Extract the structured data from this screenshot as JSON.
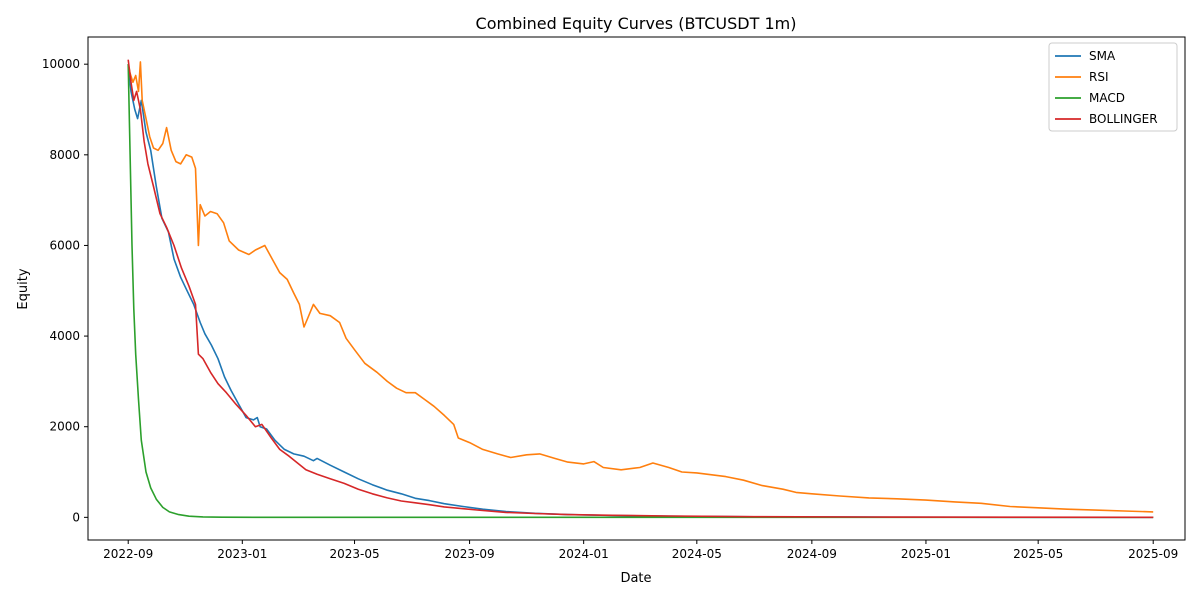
{
  "chart_data": {
    "type": "line",
    "title": "Combined Equity Curves (BTCUSDT 1m)",
    "xlabel": "Date",
    "ylabel": "Equity",
    "x_axis_type": "date",
    "xlim": [
      "2022-07-20",
      "2025-10-05"
    ],
    "ylim": [
      -500,
      10600
    ],
    "x_ticks": [
      {
        "date": "2022-09-01",
        "label": "2022-09"
      },
      {
        "date": "2023-01-01",
        "label": "2023-01"
      },
      {
        "date": "2023-05-01",
        "label": "2023-05"
      },
      {
        "date": "2023-09-01",
        "label": "2023-09"
      },
      {
        "date": "2024-01-01",
        "label": "2024-01"
      },
      {
        "date": "2024-05-01",
        "label": "2024-05"
      },
      {
        "date": "2024-09-01",
        "label": "2024-09"
      },
      {
        "date": "2025-01-01",
        "label": "2025-01"
      },
      {
        "date": "2025-05-01",
        "label": "2025-05"
      },
      {
        "date": "2025-09-01",
        "label": "2025-09"
      }
    ],
    "y_ticks": [
      {
        "value": 0,
        "label": "0"
      },
      {
        "value": 2000,
        "label": "2000"
      },
      {
        "value": 4000,
        "label": "4000"
      },
      {
        "value": 6000,
        "label": "6000"
      },
      {
        "value": 8000,
        "label": "8000"
      },
      {
        "value": 10000,
        "label": "10000"
      }
    ],
    "grid": false,
    "legend_position": "top-right",
    "series": [
      {
        "name": "SMA",
        "color": "#1f77b4",
        "points": [
          [
            "2022-09-01",
            10000
          ],
          [
            "2022-09-04",
            9400
          ],
          [
            "2022-09-08",
            9000
          ],
          [
            "2022-09-11",
            8800
          ],
          [
            "2022-09-15",
            9200
          ],
          [
            "2022-09-20",
            8500
          ],
          [
            "2022-09-25",
            8100
          ],
          [
            "2022-10-01",
            7300
          ],
          [
            "2022-10-07",
            6600
          ],
          [
            "2022-10-14",
            6300
          ],
          [
            "2022-10-20",
            5700
          ],
          [
            "2022-10-27",
            5300
          ],
          [
            "2022-11-03",
            5000
          ],
          [
            "2022-11-10",
            4700
          ],
          [
            "2022-11-17",
            4300
          ],
          [
            "2022-11-22",
            4050
          ],
          [
            "2022-11-29",
            3800
          ],
          [
            "2022-12-06",
            3500
          ],
          [
            "2022-12-13",
            3100
          ],
          [
            "2022-12-20",
            2800
          ],
          [
            "2022-12-28",
            2500
          ],
          [
            "2023-01-05",
            2200
          ],
          [
            "2023-01-13",
            2150
          ],
          [
            "2023-01-17",
            2200
          ],
          [
            "2023-01-20",
            2000
          ],
          [
            "2023-01-27",
            1950
          ],
          [
            "2023-02-05",
            1700
          ],
          [
            "2023-02-15",
            1500
          ],
          [
            "2023-02-25",
            1400
          ],
          [
            "2023-03-08",
            1350
          ],
          [
            "2023-03-18",
            1250
          ],
          [
            "2023-03-22",
            1300
          ],
          [
            "2023-04-05",
            1150
          ],
          [
            "2023-04-20",
            1000
          ],
          [
            "2023-05-05",
            850
          ],
          [
            "2023-05-20",
            720
          ],
          [
            "2023-06-05",
            600
          ],
          [
            "2023-06-20",
            520
          ],
          [
            "2023-07-05",
            420
          ],
          [
            "2023-07-20",
            370
          ],
          [
            "2023-08-05",
            300
          ],
          [
            "2023-08-25",
            240
          ],
          [
            "2023-09-15",
            180
          ],
          [
            "2023-10-10",
            130
          ],
          [
            "2023-11-10",
            90
          ],
          [
            "2023-12-15",
            60
          ],
          [
            "2024-02-01",
            40
          ],
          [
            "2024-04-01",
            25
          ],
          [
            "2024-07-01",
            12
          ],
          [
            "2024-11-01",
            5
          ],
          [
            "2025-04-01",
            2
          ],
          [
            "2025-09-01",
            1
          ]
        ]
      },
      {
        "name": "RSI",
        "color": "#ff7f0e",
        "points": [
          [
            "2022-09-01",
            10000
          ],
          [
            "2022-09-03",
            9800
          ],
          [
            "2022-09-06",
            9600
          ],
          [
            "2022-09-09",
            9750
          ],
          [
            "2022-09-12",
            9400
          ],
          [
            "2022-09-14",
            10050
          ],
          [
            "2022-09-16",
            9200
          ],
          [
            "2022-09-20",
            8800
          ],
          [
            "2022-09-24",
            8400
          ],
          [
            "2022-09-28",
            8150
          ],
          [
            "2022-10-03",
            8100
          ],
          [
            "2022-10-08",
            8250
          ],
          [
            "2022-10-12",
            8600
          ],
          [
            "2022-10-17",
            8100
          ],
          [
            "2022-10-22",
            7850
          ],
          [
            "2022-10-27",
            7800
          ],
          [
            "2022-11-02",
            8000
          ],
          [
            "2022-11-08",
            7950
          ],
          [
            "2022-11-12",
            7700
          ],
          [
            "2022-11-15",
            6000
          ],
          [
            "2022-11-17",
            6900
          ],
          [
            "2022-11-22",
            6650
          ],
          [
            "2022-11-28",
            6750
          ],
          [
            "2022-12-05",
            6700
          ],
          [
            "2022-12-12",
            6500
          ],
          [
            "2022-12-18",
            6100
          ],
          [
            "2022-12-28",
            5900
          ],
          [
            "2023-01-08",
            5800
          ],
          [
            "2023-01-15",
            5900
          ],
          [
            "2023-01-25",
            6000
          ],
          [
            "2023-02-02",
            5700
          ],
          [
            "2023-02-10",
            5400
          ],
          [
            "2023-02-18",
            5250
          ],
          [
            "2023-02-25",
            4950
          ],
          [
            "2023-03-03",
            4700
          ],
          [
            "2023-03-08",
            4200
          ],
          [
            "2023-03-12",
            4400
          ],
          [
            "2023-03-18",
            4700
          ],
          [
            "2023-03-25",
            4500
          ],
          [
            "2023-04-05",
            4450
          ],
          [
            "2023-04-15",
            4300
          ],
          [
            "2023-04-22",
            3950
          ],
          [
            "2023-05-01",
            3700
          ],
          [
            "2023-05-12",
            3400
          ],
          [
            "2023-05-25",
            3200
          ],
          [
            "2023-06-05",
            3000
          ],
          [
            "2023-06-15",
            2850
          ],
          [
            "2023-06-25",
            2750
          ],
          [
            "2023-07-05",
            2750
          ],
          [
            "2023-07-15",
            2600
          ],
          [
            "2023-07-25",
            2450
          ],
          [
            "2023-08-05",
            2250
          ],
          [
            "2023-08-15",
            2050
          ],
          [
            "2023-08-20",
            1750
          ],
          [
            "2023-09-01",
            1650
          ],
          [
            "2023-09-15",
            1500
          ],
          [
            "2023-10-01",
            1400
          ],
          [
            "2023-10-15",
            1320
          ],
          [
            "2023-11-01",
            1380
          ],
          [
            "2023-11-15",
            1400
          ],
          [
            "2023-12-01",
            1300
          ],
          [
            "2023-12-15",
            1220
          ],
          [
            "2024-01-01",
            1180
          ],
          [
            "2024-01-12",
            1230
          ],
          [
            "2024-01-22",
            1100
          ],
          [
            "2024-02-10",
            1050
          ],
          [
            "2024-03-01",
            1100
          ],
          [
            "2024-03-15",
            1200
          ],
          [
            "2024-04-01",
            1100
          ],
          [
            "2024-04-15",
            1000
          ],
          [
            "2024-05-01",
            980
          ],
          [
            "2024-06-01",
            900
          ],
          [
            "2024-06-20",
            820
          ],
          [
            "2024-07-10",
            700
          ],
          [
            "2024-08-01",
            620
          ],
          [
            "2024-08-15",
            550
          ],
          [
            "2024-09-01",
            520
          ],
          [
            "2024-10-01",
            470
          ],
          [
            "2024-11-01",
            430
          ],
          [
            "2024-12-01",
            410
          ],
          [
            "2025-01-01",
            380
          ],
          [
            "2025-02-01",
            340
          ],
          [
            "2025-03-01",
            310
          ],
          [
            "2025-04-01",
            240
          ],
          [
            "2025-05-01",
            210
          ],
          [
            "2025-06-01",
            180
          ],
          [
            "2025-07-01",
            160
          ],
          [
            "2025-08-01",
            140
          ],
          [
            "2025-09-01",
            120
          ]
        ]
      },
      {
        "name": "MACD",
        "color": "#2ca02c",
        "points": [
          [
            "2022-09-01",
            10000
          ],
          [
            "2022-09-03",
            8000
          ],
          [
            "2022-09-05",
            6000
          ],
          [
            "2022-09-07",
            4600
          ],
          [
            "2022-09-09",
            3600
          ],
          [
            "2022-09-12",
            2600
          ],
          [
            "2022-09-15",
            1700
          ],
          [
            "2022-09-20",
            1000
          ],
          [
            "2022-09-25",
            650
          ],
          [
            "2022-10-01",
            400
          ],
          [
            "2022-10-08",
            220
          ],
          [
            "2022-10-15",
            120
          ],
          [
            "2022-10-25",
            60
          ],
          [
            "2022-11-05",
            25
          ],
          [
            "2022-11-20",
            10
          ],
          [
            "2022-12-10",
            3
          ],
          [
            "2023-02-01",
            1
          ],
          [
            "2023-06-01",
            0
          ],
          [
            "2024-01-01",
            0
          ],
          [
            "2025-09-01",
            0
          ]
        ]
      },
      {
        "name": "BOLLINGER",
        "color": "#d62728",
        "points": [
          [
            "2022-09-01",
            10100
          ],
          [
            "2022-09-04",
            9600
          ],
          [
            "2022-09-07",
            9200
          ],
          [
            "2022-09-10",
            9400
          ],
          [
            "2022-09-14",
            9000
          ],
          [
            "2022-09-18",
            8300
          ],
          [
            "2022-09-22",
            7800
          ],
          [
            "2022-09-28",
            7300
          ],
          [
            "2022-10-05",
            6700
          ],
          [
            "2022-10-12",
            6400
          ],
          [
            "2022-10-20",
            6000
          ],
          [
            "2022-10-28",
            5500
          ],
          [
            "2022-11-05",
            5100
          ],
          [
            "2022-11-12",
            4700
          ],
          [
            "2022-11-15",
            3600
          ],
          [
            "2022-11-20",
            3500
          ],
          [
            "2022-11-28",
            3200
          ],
          [
            "2022-12-06",
            2950
          ],
          [
            "2022-12-15",
            2750
          ],
          [
            "2022-12-25",
            2500
          ],
          [
            "2023-01-05",
            2250
          ],
          [
            "2023-01-15",
            2000
          ],
          [
            "2023-01-22",
            2050
          ],
          [
            "2023-02-01",
            1750
          ],
          [
            "2023-02-10",
            1500
          ],
          [
            "2023-02-20",
            1350
          ],
          [
            "2023-03-01",
            1200
          ],
          [
            "2023-03-10",
            1050
          ],
          [
            "2023-03-22",
            950
          ],
          [
            "2023-04-05",
            850
          ],
          [
            "2023-04-20",
            750
          ],
          [
            "2023-05-05",
            620
          ],
          [
            "2023-05-20",
            520
          ],
          [
            "2023-06-05",
            430
          ],
          [
            "2023-06-20",
            360
          ],
          [
            "2023-07-05",
            320
          ],
          [
            "2023-07-20",
            280
          ],
          [
            "2023-08-05",
            230
          ],
          [
            "2023-08-25",
            190
          ],
          [
            "2023-09-15",
            150
          ],
          [
            "2023-10-10",
            110
          ],
          [
            "2023-11-10",
            85
          ],
          [
            "2023-12-15",
            60
          ],
          [
            "2024-02-01",
            45
          ],
          [
            "2024-04-01",
            30
          ],
          [
            "2024-07-01",
            15
          ],
          [
            "2024-11-01",
            7
          ],
          [
            "2025-04-01",
            3
          ],
          [
            "2025-09-01",
            2
          ]
        ]
      }
    ]
  }
}
